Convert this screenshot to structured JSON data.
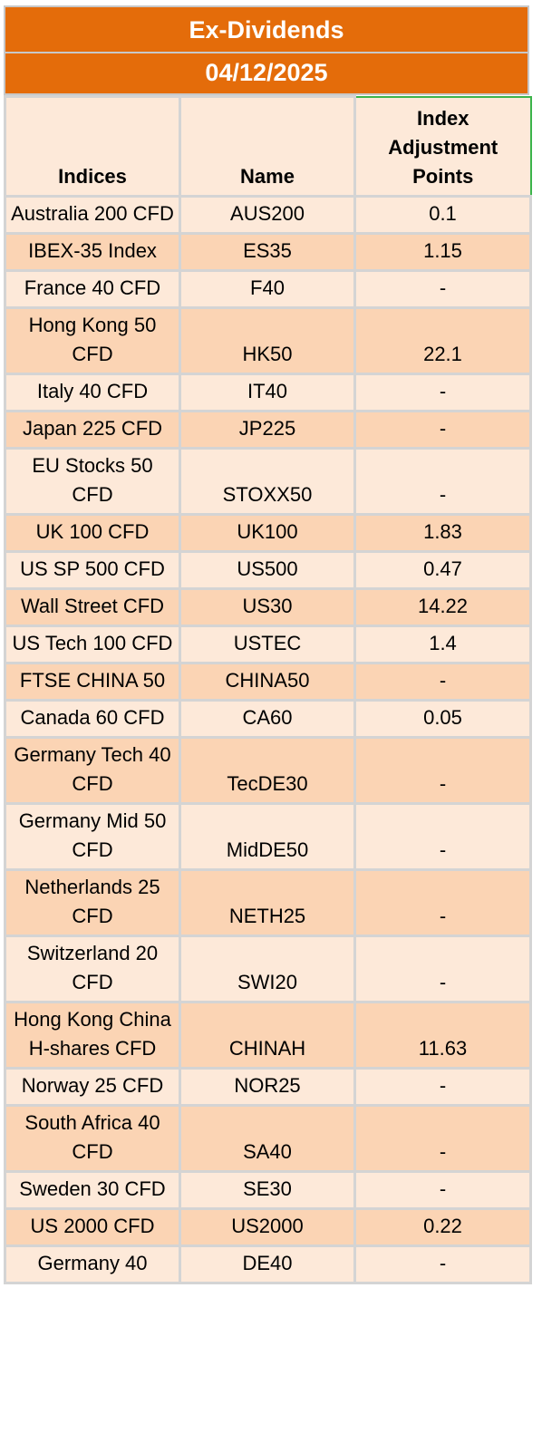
{
  "title": "Ex-Dividends",
  "date": "04/12/2025",
  "headers": [
    "Indices",
    "Name",
    "Index Adjustment Points"
  ],
  "rows": [
    [
      "Australia 200 CFD",
      "AUS200",
      "0.1"
    ],
    [
      "IBEX-35 Index",
      "ES35",
      "1.15"
    ],
    [
      "France 40 CFD",
      "F40",
      "-"
    ],
    [
      "Hong Kong 50 CFD",
      "HK50",
      "22.1"
    ],
    [
      "Italy 40 CFD",
      "IT40",
      "-"
    ],
    [
      "Japan 225 CFD",
      "JP225",
      "-"
    ],
    [
      "EU Stocks 50 CFD",
      "STOXX50",
      "-"
    ],
    [
      "UK 100 CFD",
      "UK100",
      "1.83"
    ],
    [
      "US SP 500 CFD",
      "US500",
      "0.47"
    ],
    [
      "Wall Street CFD",
      "US30",
      "14.22"
    ],
    [
      "US Tech 100 CFD",
      "USTEC",
      "1.4"
    ],
    [
      "FTSE CHINA 50",
      "CHINA50",
      "-"
    ],
    [
      "Canada 60 CFD",
      "CA60",
      "0.05"
    ],
    [
      "Germany Tech 40 CFD",
      "TecDE30",
      "-"
    ],
    [
      "Germany Mid 50 CFD",
      "MidDE50",
      "-"
    ],
    [
      "Netherlands 25 CFD",
      "NETH25",
      "-"
    ],
    [
      "Switzerland 20 CFD",
      "SWI20",
      "-"
    ],
    [
      "Hong Kong China H-shares CFD",
      "CHINAH",
      "11.63"
    ],
    [
      "Norway 25 CFD",
      "NOR25",
      "-"
    ],
    [
      "South Africa 40 CFD",
      "SA40",
      "-"
    ],
    [
      "Sweden 30 CFD",
      "SE30",
      "-"
    ],
    [
      "US 2000 CFD",
      "US2000",
      "0.22"
    ],
    [
      "Germany 40",
      "DE40",
      "-"
    ]
  ]
}
